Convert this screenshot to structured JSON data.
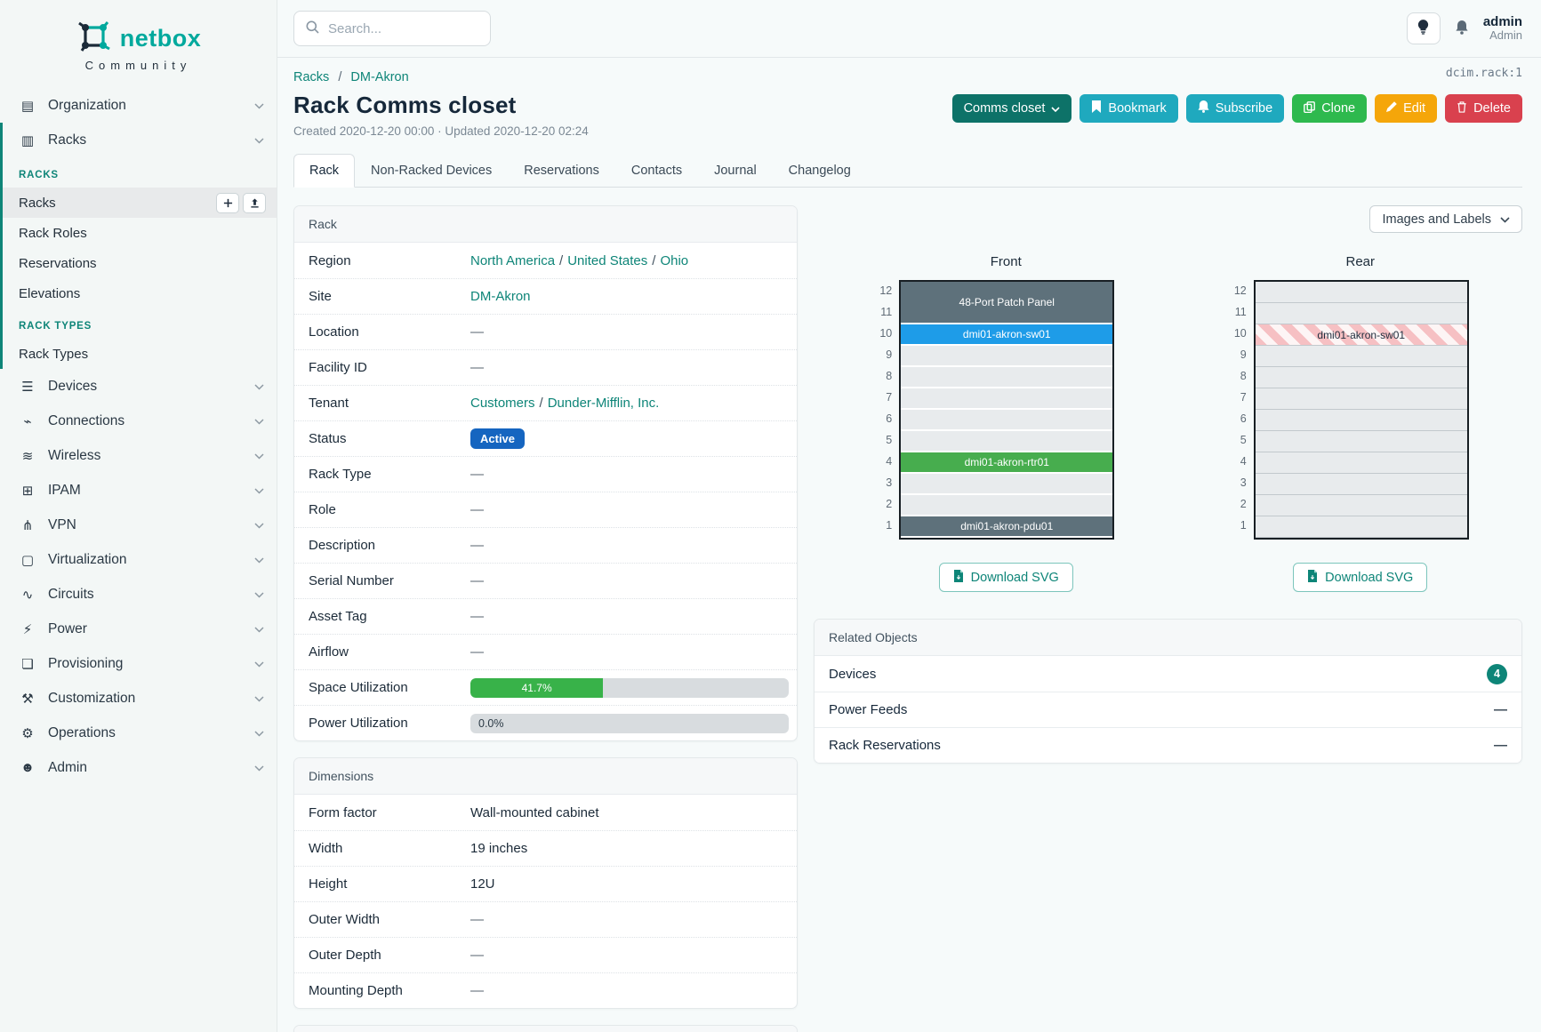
{
  "brand": {
    "name": "netbox",
    "subtitle": "Community"
  },
  "colors": {
    "brand_teal": "#00a99d",
    "link_teal": "#0e8578",
    "status_active": "#1565c0",
    "progress_green": "#38b249"
  },
  "topbar": {
    "search_placeholder": "Search...",
    "user": {
      "name": "admin",
      "role": "Admin"
    }
  },
  "sidebar": {
    "items_top": [
      {
        "label": "Organization",
        "icon": "organization"
      }
    ],
    "racks_item": {
      "label": "Racks",
      "icon": "racks"
    },
    "expanded_groups": [
      {
        "header": "RACKS",
        "items": [
          {
            "label": "Racks",
            "active": true,
            "actions": [
              "plus",
              "upload"
            ]
          },
          {
            "label": "Rack Roles"
          },
          {
            "label": "Reservations"
          },
          {
            "label": "Elevations"
          }
        ]
      },
      {
        "header": "RACK TYPES",
        "items": [
          {
            "label": "Rack Types"
          }
        ]
      }
    ],
    "items_after": [
      {
        "label": "Devices",
        "icon": "devices"
      },
      {
        "label": "Connections",
        "icon": "connections"
      },
      {
        "label": "Wireless",
        "icon": "wireless"
      },
      {
        "label": "IPAM",
        "icon": "ipam"
      },
      {
        "label": "VPN",
        "icon": "vpn"
      },
      {
        "label": "Virtualization",
        "icon": "virtualization"
      },
      {
        "label": "Circuits",
        "icon": "circuits"
      },
      {
        "label": "Power",
        "icon": "power"
      },
      {
        "label": "Provisioning",
        "icon": "provisioning"
      },
      {
        "label": "Customization",
        "icon": "customization"
      },
      {
        "label": "Operations",
        "icon": "operations"
      },
      {
        "label": "Admin",
        "icon": "admin"
      }
    ]
  },
  "page": {
    "object_id": "dcim.rack:1",
    "breadcrumb": [
      "Racks",
      "DM-Akron"
    ],
    "title": "Rack Comms closet",
    "meta": "Created 2020-12-20 00:00 · Updated 2020-12-20 02:24",
    "actions": [
      {
        "label": "Comms closet",
        "icon": null,
        "chevron": true,
        "color": "#0d7268",
        "name": "comms-closet-dropdown"
      },
      {
        "label": "Bookmark",
        "icon": "bookmark",
        "color": "#1fa9be",
        "name": "bookmark-button"
      },
      {
        "label": "Subscribe",
        "icon": "bell",
        "color": "#1fa9be",
        "name": "subscribe-button"
      },
      {
        "label": "Clone",
        "icon": "copy",
        "color": "#2eb94e",
        "name": "clone-button"
      },
      {
        "label": "Edit",
        "icon": "pencil",
        "color": "#f5a60a",
        "name": "edit-button"
      },
      {
        "label": "Delete",
        "icon": "trash",
        "color": "#d9414e",
        "name": "delete-button"
      }
    ],
    "tabs": [
      {
        "label": "Rack",
        "active": true
      },
      {
        "label": "Non-Racked Devices"
      },
      {
        "label": "Reservations"
      },
      {
        "label": "Contacts"
      },
      {
        "label": "Journal"
      },
      {
        "label": "Changelog"
      }
    ]
  },
  "rack_panel": {
    "title": "Rack",
    "rows": [
      {
        "label": "Region",
        "type": "links",
        "parts": [
          "North America",
          "United States",
          "Ohio"
        ]
      },
      {
        "label": "Site",
        "type": "links",
        "parts": [
          "DM-Akron"
        ]
      },
      {
        "label": "Location",
        "type": "text",
        "value": "—"
      },
      {
        "label": "Facility ID",
        "type": "text",
        "value": "—"
      },
      {
        "label": "Tenant",
        "type": "links",
        "parts": [
          "Customers",
          "Dunder-Mifflin, Inc."
        ]
      },
      {
        "label": "Status",
        "type": "badge",
        "value": "Active",
        "color": "#1565c0"
      },
      {
        "label": "Rack Type",
        "type": "text",
        "value": "—"
      },
      {
        "label": "Role",
        "type": "text",
        "value": "—"
      },
      {
        "label": "Description",
        "type": "text",
        "value": "—"
      },
      {
        "label": "Serial Number",
        "type": "text",
        "value": "—"
      },
      {
        "label": "Asset Tag",
        "type": "text",
        "value": "—"
      },
      {
        "label": "Airflow",
        "type": "text",
        "value": "—"
      },
      {
        "label": "Space Utilization",
        "type": "progress",
        "value": 41.7,
        "display": "41.7%",
        "color": "#38b249"
      },
      {
        "label": "Power Utilization",
        "type": "progress",
        "value": 0.0,
        "display": "0.0%",
        "color": "#38b249"
      }
    ]
  },
  "dimensions_panel": {
    "title": "Dimensions",
    "rows": [
      {
        "label": "Form factor",
        "type": "text",
        "value": "Wall-mounted cabinet",
        "plain": true
      },
      {
        "label": "Width",
        "type": "text",
        "value": "19 inches",
        "plain": true
      },
      {
        "label": "Height",
        "type": "text",
        "value": "12U",
        "plain": true
      },
      {
        "label": "Outer Width",
        "type": "text",
        "value": "—"
      },
      {
        "label": "Outer Depth",
        "type": "text",
        "value": "—"
      },
      {
        "label": "Mounting Depth",
        "type": "text",
        "value": "—"
      }
    ]
  },
  "elevations": {
    "view_selector": "Images and Labels",
    "download_label": "Download SVG",
    "unit_numbers": [
      12,
      11,
      10,
      9,
      8,
      7,
      6,
      5,
      4,
      3,
      2,
      1
    ],
    "front": {
      "title": "Front",
      "units": [
        {
          "kind": "device",
          "span": 2,
          "label": "48-Port Patch Panel",
          "bg": "#5e717b"
        },
        {
          "kind": "device",
          "span": 1,
          "label": "dmi01-akron-sw01",
          "bg": "#1e9ce8"
        },
        {
          "kind": "empty",
          "span": 1
        },
        {
          "kind": "empty",
          "span": 1
        },
        {
          "kind": "empty",
          "span": 1
        },
        {
          "kind": "empty",
          "span": 1
        },
        {
          "kind": "empty",
          "span": 1
        },
        {
          "kind": "device",
          "span": 1,
          "label": "dmi01-akron-rtr01",
          "bg": "#47ad4e"
        },
        {
          "kind": "empty",
          "span": 1
        },
        {
          "kind": "empty",
          "span": 1
        },
        {
          "kind": "device",
          "span": 1,
          "label": "dmi01-akron-pdu01",
          "bg": "#5e717b"
        }
      ]
    },
    "rear": {
      "title": "Rear",
      "units": [
        {
          "kind": "empty",
          "span": 1
        },
        {
          "kind": "empty",
          "span": 1
        },
        {
          "kind": "striped",
          "span": 1,
          "label": "dmi01-akron-sw01"
        },
        {
          "kind": "empty",
          "span": 1
        },
        {
          "kind": "empty",
          "span": 1
        },
        {
          "kind": "empty",
          "span": 1
        },
        {
          "kind": "empty",
          "span": 1
        },
        {
          "kind": "empty",
          "span": 1
        },
        {
          "kind": "empty",
          "span": 1
        },
        {
          "kind": "empty",
          "span": 1
        },
        {
          "kind": "empty",
          "span": 1
        },
        {
          "kind": "empty",
          "span": 1
        }
      ]
    }
  },
  "related_objects": {
    "title": "Related Objects",
    "rows": [
      {
        "label": "Devices",
        "badge": "4"
      },
      {
        "label": "Power Feeds",
        "value": "—"
      },
      {
        "label": "Rack Reservations",
        "value": "—"
      }
    ]
  }
}
